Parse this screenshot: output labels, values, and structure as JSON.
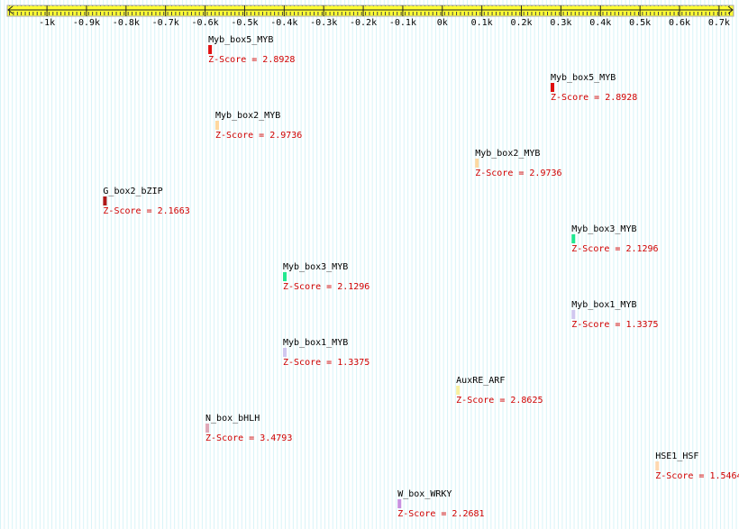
{
  "axis": {
    "xlim": [
      -1096,
      739
    ],
    "ticks": [
      {
        "value": -1000,
        "label": "-1k"
      },
      {
        "value": -900,
        "label": "-0.9k"
      },
      {
        "value": -800,
        "label": "-0.8k"
      },
      {
        "value": -700,
        "label": "-0.7k"
      },
      {
        "value": -600,
        "label": "-0.6k"
      },
      {
        "value": -500,
        "label": "-0.5k"
      },
      {
        "value": -400,
        "label": "-0.4k"
      },
      {
        "value": -300,
        "label": "-0.3k"
      },
      {
        "value": -200,
        "label": "-0.2k"
      },
      {
        "value": -100,
        "label": "-0.1k"
      },
      {
        "value": 0,
        "label": "0k"
      },
      {
        "value": 100,
        "label": "0.1k"
      },
      {
        "value": 200,
        "label": "0.2k"
      },
      {
        "value": 300,
        "label": "0.3k"
      },
      {
        "value": 400,
        "label": "0.4k"
      },
      {
        "value": 500,
        "label": "0.5k"
      },
      {
        "value": 600,
        "label": "0.6k"
      },
      {
        "value": 700,
        "label": "0.7k"
      }
    ]
  },
  "features": [
    {
      "name": "Myb_box5_MYB",
      "score": "Z-Score = 2.8928",
      "position": -592,
      "color": "#e01010"
    },
    {
      "name": "Myb_box5_MYB",
      "score": "Z-Score = 2.8928",
      "position": 274,
      "color": "#e01010"
    },
    {
      "name": "Myb_box2_MYB",
      "score": "Z-Score = 2.9736",
      "position": -574,
      "color": "#ffd8a0"
    },
    {
      "name": "Myb_box2_MYB",
      "score": "Z-Score = 2.9736",
      "position": 83,
      "color": "#ffd8a0"
    },
    {
      "name": "G_box2_bZIP",
      "score": "Z-Score = 2.1663",
      "position": -858,
      "color": "#b01818"
    },
    {
      "name": "Myb_box3_MYB",
      "score": "Z-Score = 2.1296",
      "position": 327,
      "color": "#20e890"
    },
    {
      "name": "Myb_box3_MYB",
      "score": "Z-Score = 2.1296",
      "position": -403,
      "color": "#20e890"
    },
    {
      "name": "Myb_box1_MYB",
      "score": "Z-Score = 1.3375",
      "position": 327,
      "color": "#d0c8f0"
    },
    {
      "name": "Myb_box1_MYB",
      "score": "Z-Score = 1.3375",
      "position": -403,
      "color": "#d0c8f0"
    },
    {
      "name": "AuxRE_ARF",
      "score": "Z-Score = 2.8625",
      "position": 35,
      "color": "#f8f0a0"
    },
    {
      "name": "N_box_bHLH",
      "score": "Z-Score = 3.4793",
      "position": -599,
      "color": "#e0a8b8"
    },
    {
      "name": "HSE1_HSF",
      "score": "Z-Score = 1.5464",
      "position": 539,
      "color": "#ffd8b0"
    },
    {
      "name": "W_box_WRKY",
      "score": "Z-Score = 2.2681",
      "position": -113,
      "color": "#c890e0"
    }
  ]
}
